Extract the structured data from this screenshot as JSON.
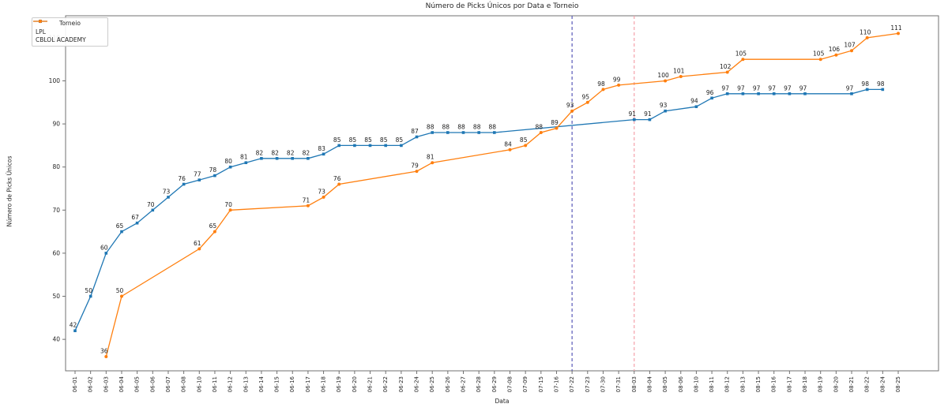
{
  "chart_data": {
    "type": "line",
    "title": "Número de Picks Únicos por Data e Torneio",
    "xlabel": "Data",
    "ylabel": "Número de Picks Únicos",
    "legend": {
      "title": "Torneio",
      "position": "upper left"
    },
    "grid": false,
    "yticks": [
      40,
      50,
      60,
      70,
      80,
      90,
      100,
      110
    ],
    "ylim": [
      32.7,
      115.1
    ],
    "categories": [
      "06-01",
      "06-02",
      "06-03",
      "06-04",
      "06-05",
      "06-06",
      "06-07",
      "06-08",
      "06-10",
      "06-11",
      "06-12",
      "06-13",
      "06-14",
      "06-15",
      "06-16",
      "06-17",
      "06-18",
      "06-19",
      "06-20",
      "06-21",
      "06-22",
      "06-23",
      "06-24",
      "06-25",
      "06-26",
      "06-27",
      "06-28",
      "06-29",
      "07-08",
      "07-09",
      "07-15",
      "07-16",
      "07-22",
      "07-23",
      "07-30",
      "07-31",
      "08-03",
      "08-04",
      "08-05",
      "08-06",
      "08-10",
      "08-11",
      "08-12",
      "08-13",
      "08-15",
      "08-16",
      "08-17",
      "08-18",
      "08-19",
      "08-20",
      "08-21",
      "08-22",
      "08-24",
      "08-25"
    ],
    "series": [
      {
        "name": "LPL",
        "color": "#1f77b4",
        "marker": "square",
        "points": [
          [
            "06-01",
            42
          ],
          [
            "06-02",
            50
          ],
          [
            "06-03",
            60
          ],
          [
            "06-04",
            65
          ],
          [
            "06-05",
            67
          ],
          [
            "06-06",
            70
          ],
          [
            "06-07",
            73
          ],
          [
            "06-08",
            76
          ],
          [
            "06-10",
            77
          ],
          [
            "06-11",
            78
          ],
          [
            "06-12",
            80
          ],
          [
            "06-13",
            81
          ],
          [
            "06-14",
            82
          ],
          [
            "06-15",
            82
          ],
          [
            "06-16",
            82
          ],
          [
            "06-17",
            82
          ],
          [
            "06-18",
            83
          ],
          [
            "06-19",
            85
          ],
          [
            "06-20",
            85
          ],
          [
            "06-21",
            85
          ],
          [
            "06-22",
            85
          ],
          [
            "06-23",
            85
          ],
          [
            "06-24",
            87
          ],
          [
            "06-25",
            88
          ],
          [
            "06-26",
            88
          ],
          [
            "06-27",
            88
          ],
          [
            "06-28",
            88
          ],
          [
            "06-29",
            88
          ],
          [
            "08-03",
            91
          ],
          [
            "08-04",
            91
          ],
          [
            "08-05",
            93
          ],
          [
            "08-10",
            94
          ],
          [
            "08-11",
            96
          ],
          [
            "08-12",
            97
          ],
          [
            "08-13",
            97
          ],
          [
            "08-15",
            97
          ],
          [
            "08-16",
            97
          ],
          [
            "08-17",
            97
          ],
          [
            "08-18",
            97
          ],
          [
            "08-21",
            97
          ],
          [
            "08-22",
            98
          ],
          [
            "08-24",
            98
          ]
        ]
      },
      {
        "name": "CBLOL ACADEMY",
        "color": "#ff7f0e",
        "marker": "circle",
        "points": [
          [
            "06-03",
            36
          ],
          [
            "06-04",
            50
          ],
          [
            "06-10",
            61
          ],
          [
            "06-11",
            65
          ],
          [
            "06-12",
            70
          ],
          [
            "06-17",
            71
          ],
          [
            "06-18",
            73
          ],
          [
            "06-19",
            76
          ],
          [
            "06-24",
            79
          ],
          [
            "06-25",
            81
          ],
          [
            "07-08",
            84
          ],
          [
            "07-09",
            85
          ],
          [
            "07-15",
            88
          ],
          [
            "07-16",
            89
          ],
          [
            "07-22",
            93
          ],
          [
            "07-23",
            95
          ],
          [
            "07-30",
            98
          ],
          [
            "07-31",
            99
          ],
          [
            "08-05",
            100
          ],
          [
            "08-06",
            101
          ],
          [
            "08-12",
            102
          ],
          [
            "08-13",
            105
          ],
          [
            "08-19",
            105
          ],
          [
            "08-20",
            106
          ],
          [
            "08-21",
            107
          ],
          [
            "08-22",
            110
          ],
          [
            "08-25",
            111
          ]
        ]
      }
    ],
    "vlines": [
      {
        "x": "07-22",
        "color": "#5a5ab8",
        "style": "dashed"
      },
      {
        "x": "08-03",
        "color": "#f5a0aa",
        "style": "dashed"
      }
    ]
  }
}
